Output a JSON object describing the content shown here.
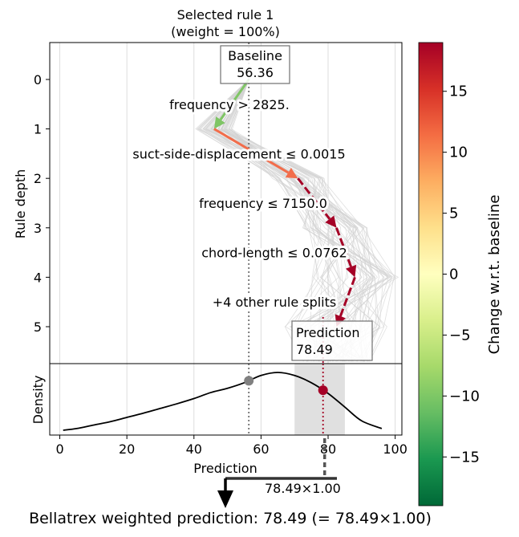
{
  "colors": {
    "rule_arrow_dark": "#a50026",
    "rule_arrow_orange": "#f26d4b",
    "rule_arrow_green": "#7fc565",
    "baseline_marker": "#808080",
    "prediction_marker": "#a50026",
    "density_line": "#000000",
    "band_fill": "#e0e0e0",
    "bg_paths": "#d3d3d3"
  },
  "chart_data": [
    {
      "type": "line",
      "title": "Selected rule 1\n(weight = 100%)",
      "ylabel": "Rule depth",
      "yticks": [
        "0",
        "1",
        "2",
        "3",
        "4",
        "5"
      ],
      "ylim": [
        5.7,
        -0.75
      ],
      "xlim": [
        -3,
        102
      ],
      "grid": "vertical",
      "baseline": {
        "label": "Baseline",
        "value": "56.36"
      },
      "prediction": {
        "label": "Prediction",
        "value": "78.49"
      },
      "path": [
        {
          "depth": 0,
          "value": 56.36
        },
        {
          "depth": 1,
          "value": 46.0
        },
        {
          "depth": 2,
          "value": 71.0
        },
        {
          "depth": 3,
          "value": 82.5
        },
        {
          "depth": 4,
          "value": 88.0
        },
        {
          "depth": 5,
          "value": 82.5
        }
      ],
      "rules": [
        "frequency >  2825.",
        "suct-side-displacement $\\leq$ 0.0015",
        "frequency $\\leq$ 7150.0",
        "chord-length $\\leq$ 0.0762",
        "+4 other rule splits"
      ],
      "rules_display": [
        "frequency >  2825.",
        "suct-side-displacement  ≤  0.0015",
        "frequency  ≤  7150.0",
        "chord-length  ≤  0.0762",
        "+4 other rule splits"
      ]
    },
    {
      "type": "line",
      "xlabel": "Prediction",
      "ylabel": "Density",
      "xticks": [
        "0",
        "20",
        "40",
        "60",
        "80",
        "100"
      ],
      "xlim": [
        -3,
        102
      ],
      "band": [
        70,
        85
      ],
      "baseline_x": 56.36,
      "prediction_x": 78.49,
      "density_curve": {
        "x": [
          1,
          5,
          10,
          15,
          20,
          25,
          30,
          35,
          40,
          45,
          50,
          55,
          60,
          65,
          70,
          75,
          80,
          85,
          90,
          96
        ],
        "y": [
          0.0,
          0.004,
          0.012,
          0.02,
          0.03,
          0.04,
          0.051,
          0.062,
          0.074,
          0.088,
          0.098,
          0.111,
          0.128,
          0.135,
          0.128,
          0.111,
          0.086,
          0.054,
          0.022,
          0.004
        ]
      }
    }
  ],
  "colorbar": {
    "label": "Change w.r.t. baseline",
    "ticks": [
      "−15",
      "−10",
      "−5",
      "0",
      "5",
      "10",
      "15"
    ],
    "range": [
      -19,
      19
    ]
  },
  "footer": {
    "weight_label": "78.49×1.00",
    "final_text": "Bellatrex weighted prediction: 78.49 (= 78.49×1.00)"
  }
}
